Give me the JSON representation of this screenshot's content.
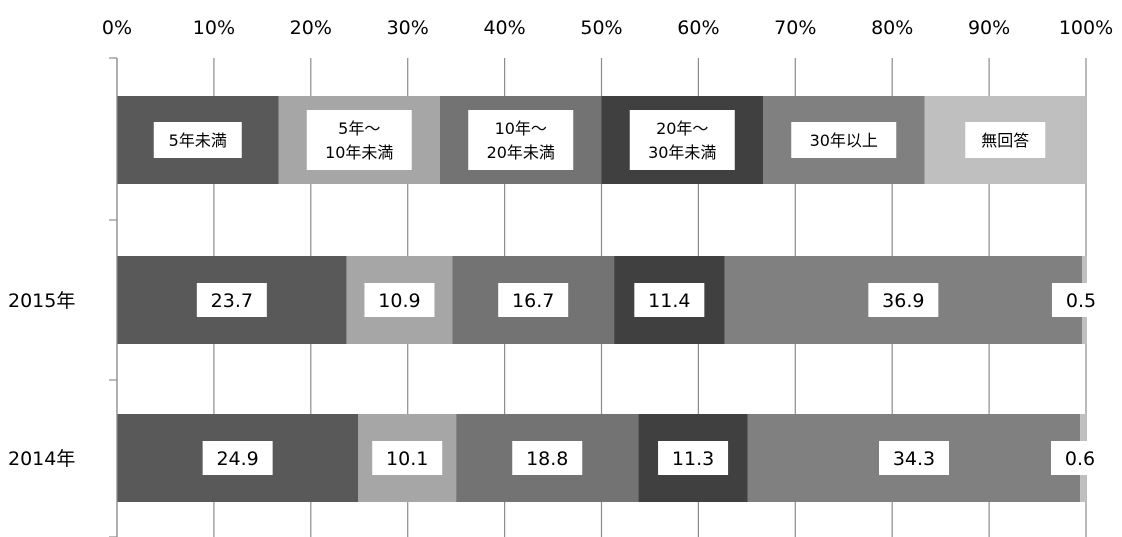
{
  "chart_data": {
    "type": "bar",
    "orientation": "horizontal",
    "stacked": true,
    "xlim": [
      0,
      100
    ],
    "x_ticks": [
      "0%",
      "10%",
      "20%",
      "30%",
      "40%",
      "50%",
      "60%",
      "70%",
      "80%",
      "90%",
      "100%"
    ],
    "grid": true,
    "categories": [
      "2015年",
      "2014年"
    ],
    "legend_position": "top",
    "series": [
      {
        "name": "5年未満",
        "name_lines": [
          "5年未満"
        ],
        "color": "#595959",
        "values": [
          23.7,
          24.9
        ]
      },
      {
        "name": "5年～10年未満",
        "name_lines": [
          "5年～",
          "10年未満"
        ],
        "color": "#a6a6a6",
        "values": [
          10.9,
          10.1
        ]
      },
      {
        "name": "10年～20年未満",
        "name_lines": [
          "10年～",
          "20年未満"
        ],
        "color": "#737373",
        "values": [
          16.7,
          18.8
        ]
      },
      {
        "name": "20年～30年未満",
        "name_lines": [
          "20年～",
          "30年未満"
        ],
        "color": "#404040",
        "values": [
          11.4,
          11.3
        ]
      },
      {
        "name": "30年以上",
        "name_lines": [
          "30年以上"
        ],
        "color": "#808080",
        "values": [
          36.9,
          34.3
        ]
      },
      {
        "name": "無回答",
        "name_lines": [
          "無回答"
        ],
        "color": "#bfbfbf",
        "values": [
          0.5,
          0.6
        ]
      }
    ]
  }
}
